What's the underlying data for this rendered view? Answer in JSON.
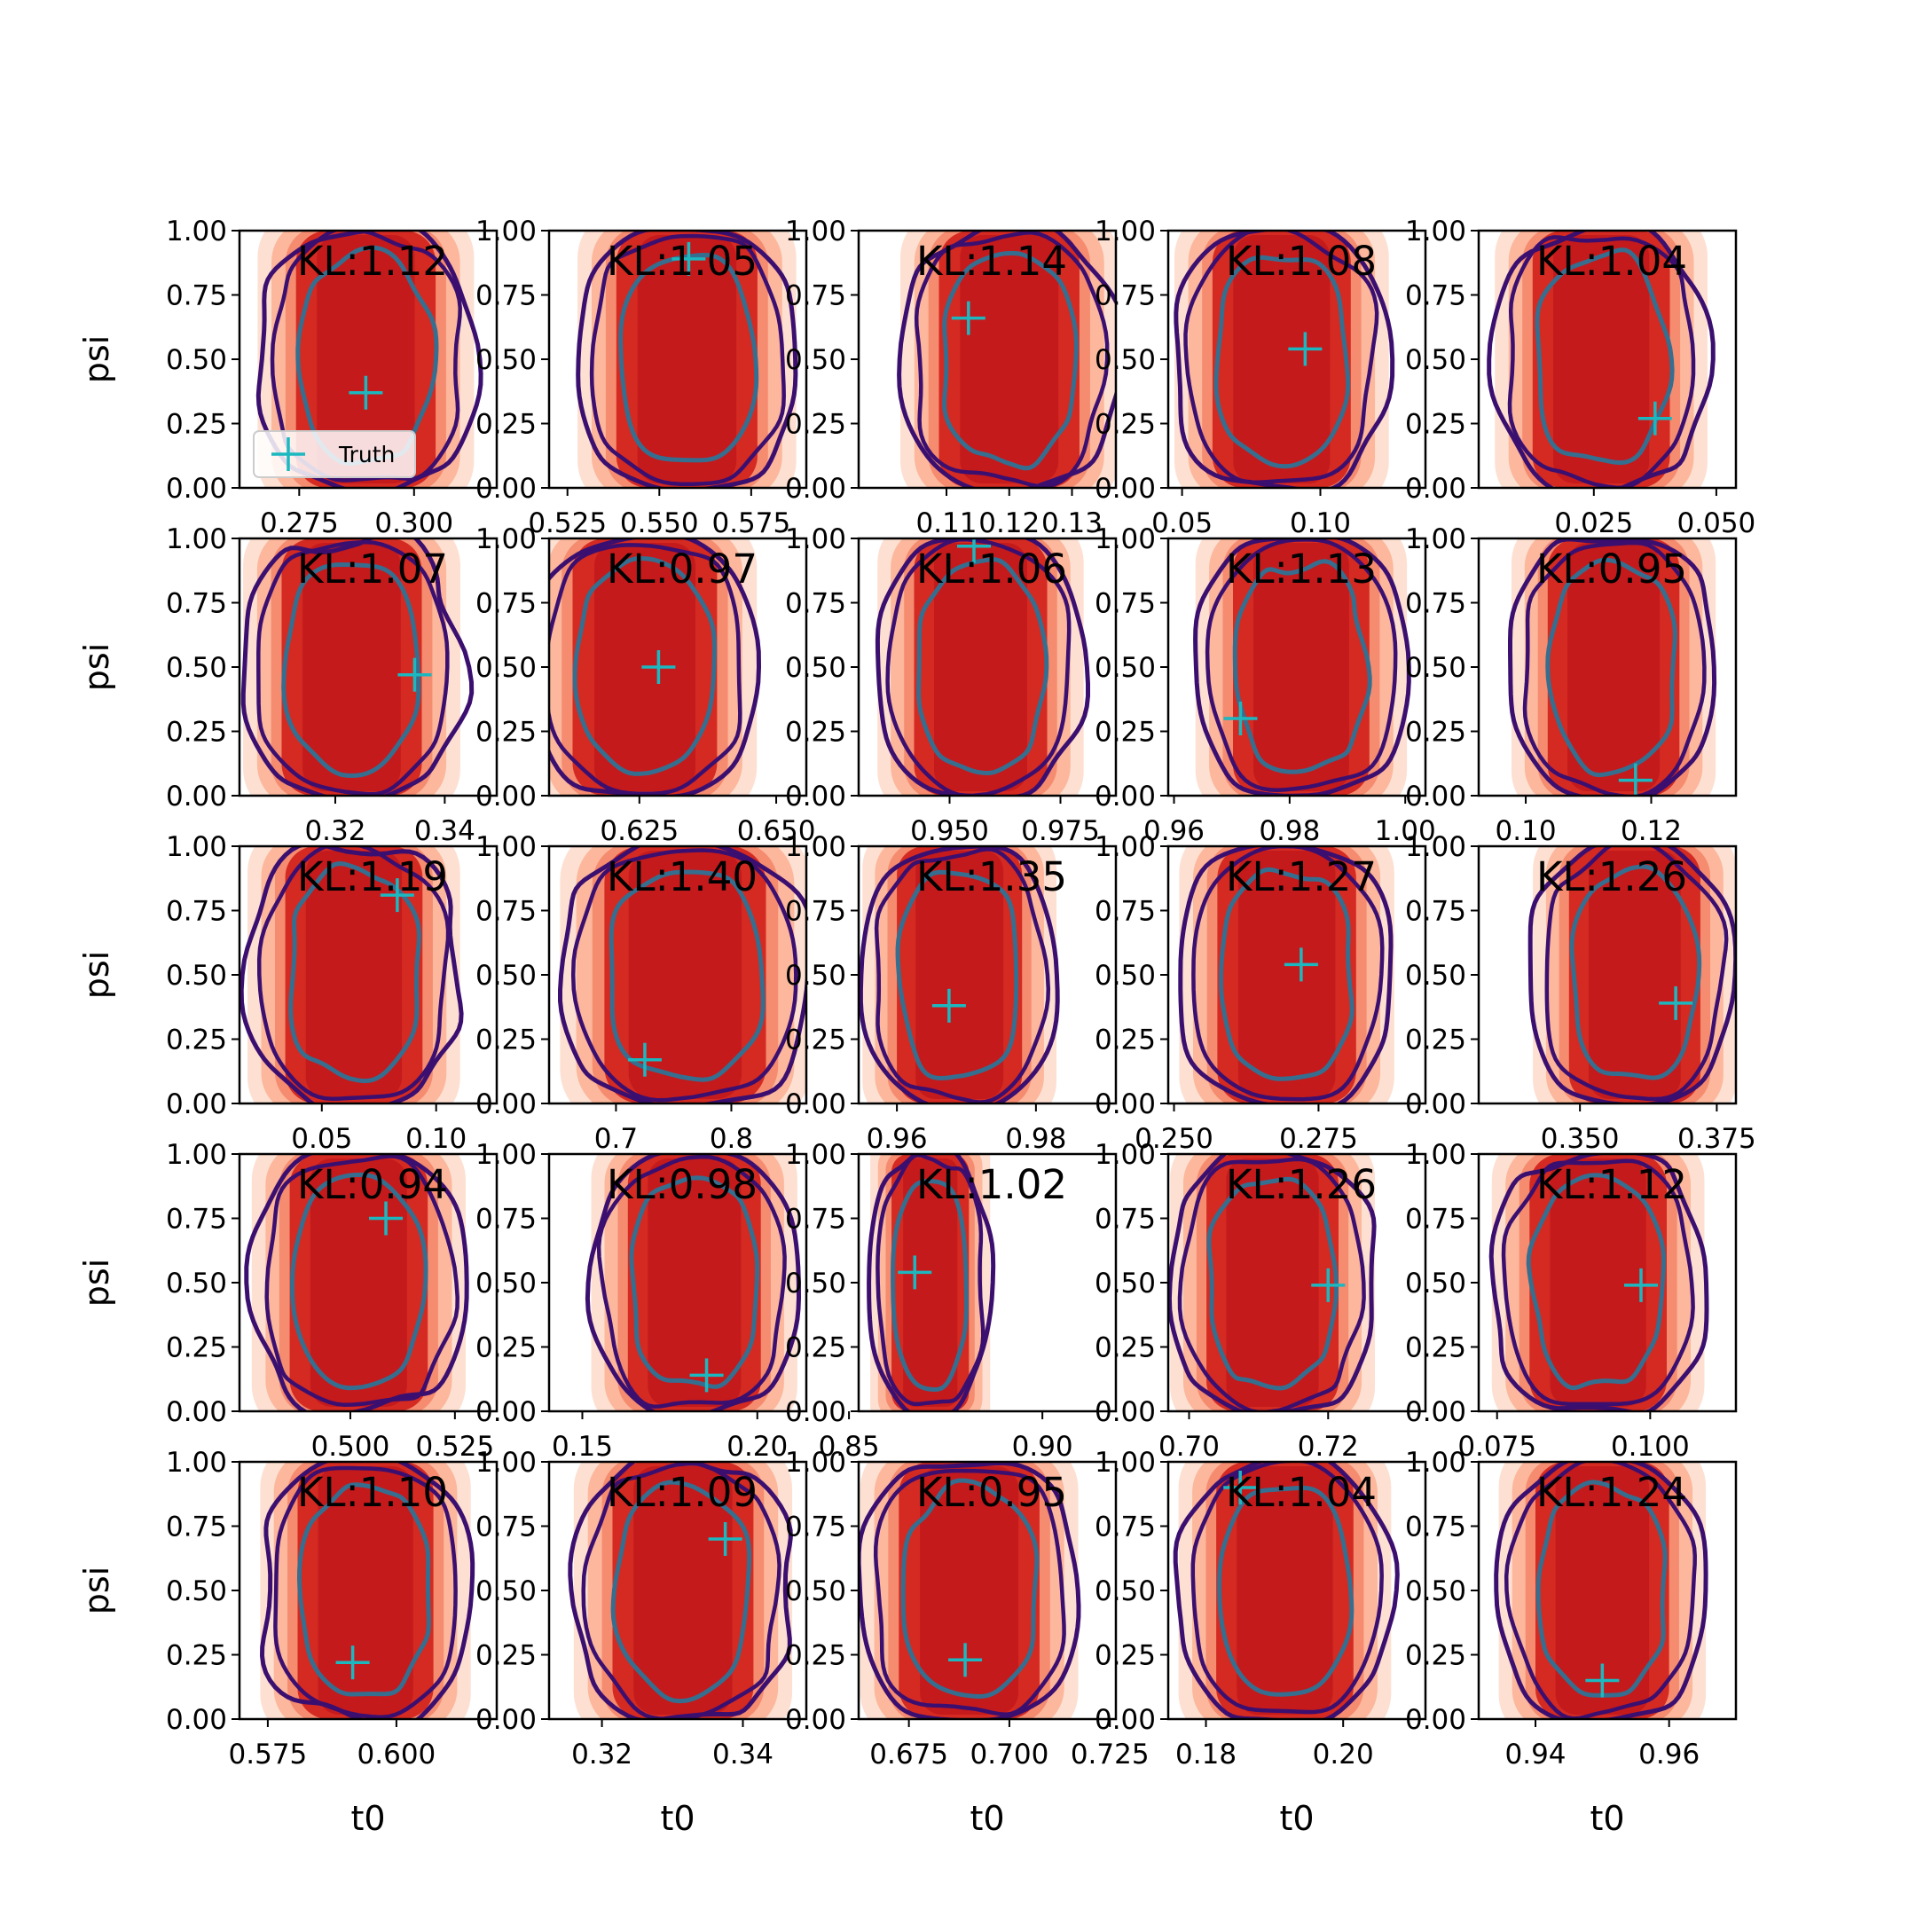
{
  "colors": {
    "fill_light": "#fde0d2",
    "fill_mid": "#fcb79c",
    "fill_mid2": "#f58b6f",
    "fill_dark": "#d42a22",
    "fill_darkest": "#c41a1c",
    "contour_outer": "#3b0f6f",
    "contour_inner": "#366e8f",
    "truth": "#1cb8c0"
  },
  "chart_data": {
    "type": "scatter",
    "description_type": "grid of 2D KDE contour plots with truth markers",
    "rows": 5,
    "cols": 5,
    "xlabel": "t0",
    "ylabel": "psi",
    "ylim": [
      0,
      1
    ],
    "yticks": [
      "0.00",
      "0.25",
      "0.50",
      "0.75",
      "1.00"
    ],
    "legend": {
      "label": "Truth",
      "placement": "lower-left",
      "panel": 0
    },
    "panels": [
      {
        "kl": "KL:1.12",
        "xlim": [
          0.262,
          0.318
        ],
        "xticks": [
          {
            "v": 0.275,
            "t": "0.275"
          },
          {
            "v": 0.3,
            "t": "0.300"
          }
        ],
        "truth": [
          0.2895,
          0.37
        ],
        "cx": 0.2895,
        "wid": 0.0152,
        "shift": 0
      },
      {
        "kl": "KL:1.05",
        "xlim": [
          0.52,
          0.59
        ],
        "xticks": [
          {
            "v": 0.525,
            "t": "0.525"
          },
          {
            "v": 0.55,
            "t": "0.550"
          },
          {
            "v": 0.575,
            "t": "0.575"
          }
        ],
        "truth": [
          0.558,
          0.89
        ],
        "cx": 0.5575,
        "wid": 0.0192,
        "shift": 0
      },
      {
        "kl": "KL:1.14",
        "xlim": [
          0.096,
          0.137
        ],
        "xticks": [
          {
            "v": 0.11,
            "t": "0.11"
          },
          {
            "v": 0.12,
            "t": "0.12"
          },
          {
            "v": 0.13,
            "t": "0.13"
          }
        ],
        "truth": [
          0.1135,
          0.66
        ],
        "cx": 0.12,
        "wid": 0.0112,
        "shift": 0
      },
      {
        "kl": "KL:1.08",
        "xlim": [
          0.045,
          0.138
        ],
        "xticks": [
          {
            "v": 0.05,
            "t": "0.05"
          },
          {
            "v": 0.1,
            "t": "0.10"
          }
        ],
        "truth": [
          0.0945,
          0.54
        ],
        "cx": 0.086,
        "wid": 0.025,
        "shift": 0
      },
      {
        "kl": "KL:1.04",
        "xlim": [
          0.0015,
          0.054
        ],
        "xticks": [
          {
            "v": 0.025,
            "t": "0.025"
          },
          {
            "v": 0.05,
            "t": "0.050"
          }
        ],
        "truth": [
          0.0375,
          0.27
        ],
        "cx": 0.0265,
        "wid": 0.014,
        "shift": 0
      },
      {
        "kl": "KL:1.07",
        "xlim": [
          0.3025,
          0.3495
        ],
        "xticks": [
          {
            "v": 0.32,
            "t": "0.32"
          },
          {
            "v": 0.34,
            "t": "0.34"
          }
        ],
        "truth": [
          0.3345,
          0.47
        ],
        "cx": 0.323,
        "wid": 0.0128,
        "shift": 0
      },
      {
        "kl": "KL:0.97",
        "xlim": [
          0.6085,
          0.6555
        ],
        "xticks": [
          {
            "v": 0.625,
            "t": "0.625"
          },
          {
            "v": 0.65,
            "t": "0.650"
          }
        ],
        "truth": [
          0.6285,
          0.5
        ],
        "cx": 0.626,
        "wid": 0.0132,
        "shift": 0
      },
      {
        "kl": "KL:1.06",
        "xlim": [
          0.9295,
          0.9875
        ],
        "xticks": [
          {
            "v": 0.95,
            "t": "0.950"
          },
          {
            "v": 0.975,
            "t": "0.975"
          }
        ],
        "truth": [
          0.9555,
          0.97
        ],
        "cx": 0.957,
        "wid": 0.015,
        "shift": 0
      },
      {
        "kl": "KL:1.13",
        "xlim": [
          0.959,
          1.0035
        ],
        "xticks": [
          {
            "v": 0.96,
            "t": "0.96"
          },
          {
            "v": 0.98,
            "t": "0.98"
          },
          {
            "v": 1.0,
            "t": "1.00"
          }
        ],
        "truth": [
          0.9715,
          0.3
        ],
        "cx": 0.982,
        "wid": 0.0118,
        "shift": 0
      },
      {
        "kl": "KL:0.95",
        "xlim": [
          0.0925,
          0.1335
        ],
        "xticks": [
          {
            "v": 0.1,
            "t": "0.10"
          },
          {
            "v": 0.12,
            "t": "0.12"
          }
        ],
        "truth": [
          0.1175,
          0.06
        ],
        "cx": 0.114,
        "wid": 0.0105,
        "shift": 0
      },
      {
        "kl": "KL:1.19",
        "xlim": [
          0.014,
          0.1265
        ],
        "xticks": [
          {
            "v": 0.05,
            "t": "0.05"
          },
          {
            "v": 0.1,
            "t": "0.10"
          }
        ],
        "truth": [
          0.083,
          0.81
        ],
        "cx": 0.064,
        "wid": 0.03,
        "shift": 0
      },
      {
        "kl": "KL:1.40",
        "xlim": [
          0.642,
          0.865
        ],
        "xticks": [
          {
            "v": 0.7,
            "t": "0.7"
          },
          {
            "v": 0.8,
            "t": "0.8"
          }
        ],
        "truth": [
          0.725,
          0.17
        ],
        "cx": 0.76,
        "wid": 0.07,
        "shift": 0
      },
      {
        "kl": "KL:1.35",
        "xlim": [
          0.9545,
          0.9915
        ],
        "xticks": [
          {
            "v": 0.96,
            "t": "0.96"
          },
          {
            "v": 0.98,
            "t": "0.98"
          }
        ],
        "truth": [
          0.9675,
          0.38
        ],
        "cx": 0.969,
        "wid": 0.009,
        "shift": 0
      },
      {
        "kl": "KL:1.27",
        "xlim": [
          0.249,
          0.2935
        ],
        "xticks": [
          {
            "v": 0.25,
            "t": "0.250"
          },
          {
            "v": 0.275,
            "t": "0.275"
          }
        ],
        "truth": [
          0.272,
          0.54
        ],
        "cx": 0.2695,
        "wid": 0.012,
        "shift": 0
      },
      {
        "kl": "KL:1.26",
        "xlim": [
          0.3315,
          0.3785
        ],
        "xticks": [
          {
            "v": 0.35,
            "t": "0.350"
          },
          {
            "v": 0.375,
            "t": "0.375"
          }
        ],
        "truth": [
          0.3675,
          0.39
        ],
        "cx": 0.36,
        "wid": 0.012,
        "shift": -0.3
      },
      {
        "kl": "KL:0.94",
        "xlim": [
          0.4735,
          0.535
        ],
        "xticks": [
          {
            "v": 0.5,
            "t": "0.500"
          },
          {
            "v": 0.525,
            "t": "0.525"
          }
        ],
        "truth": [
          0.5085,
          0.75
        ],
        "cx": 0.502,
        "wid": 0.0165,
        "shift": 0
      },
      {
        "kl": "KL:0.98",
        "xlim": [
          0.1405,
          0.214
        ],
        "xticks": [
          {
            "v": 0.15,
            "t": "0.15"
          },
          {
            "v": 0.2,
            "t": "0.20"
          }
        ],
        "truth": [
          0.1855,
          0.14
        ],
        "cx": 0.182,
        "wid": 0.019,
        "shift": 0
      },
      {
        "kl": "KL:1.02",
        "xlim": [
          0.8525,
          0.919
        ],
        "xticks": [
          {
            "v": 0.85,
            "t": "0.85"
          },
          {
            "v": 0.9,
            "t": "0.90"
          }
        ],
        "truth": [
          0.867,
          0.54
        ],
        "cx": 0.871,
        "wid": 0.01,
        "shift": 0
      },
      {
        "kl": "KL:1.26",
        "xlim": [
          0.697,
          0.734
        ],
        "xticks": [
          {
            "v": 0.7,
            "t": "0.70"
          },
          {
            "v": 0.72,
            "t": "0.72"
          }
        ],
        "truth": [
          0.72,
          0.49
        ],
        "cx": 0.712,
        "wid": 0.0095,
        "shift": 0
      },
      {
        "kl": "KL:1.12",
        "xlim": [
          0.072,
          0.114
        ],
        "xticks": [
          {
            "v": 0.075,
            "t": "0.075"
          },
          {
            "v": 0.1,
            "t": "0.100"
          }
        ],
        "truth": [
          0.0985,
          0.49
        ],
        "cx": 0.0915,
        "wid": 0.0112,
        "shift": 0
      },
      {
        "kl": "KL:1.10",
        "xlim": [
          0.5695,
          0.6195
        ],
        "xticks": [
          {
            "v": 0.575,
            "t": "0.575"
          },
          {
            "v": 0.6,
            "t": "0.600"
          }
        ],
        "truth": [
          0.5915,
          0.22
        ],
        "cx": 0.594,
        "wid": 0.0132,
        "shift": 0
      },
      {
        "kl": "KL:1.09",
        "xlim": [
          0.3125,
          0.349
        ],
        "xticks": [
          {
            "v": 0.32,
            "t": "0.32"
          },
          {
            "v": 0.34,
            "t": "0.34"
          }
        ],
        "truth": [
          0.3375,
          0.7
        ],
        "cx": 0.3315,
        "wid": 0.01,
        "shift": 0
      },
      {
        "kl": "KL:0.95",
        "xlim": [
          0.6625,
          0.7265
        ],
        "xticks": [
          {
            "v": 0.675,
            "t": "0.675"
          },
          {
            "v": 0.7,
            "t": "0.700"
          },
          {
            "v": 0.725,
            "t": "0.725"
          }
        ],
        "truth": [
          0.689,
          0.23
        ],
        "cx": 0.69,
        "wid": 0.0175,
        "shift": 0
      },
      {
        "kl": "KL:1.04",
        "xlim": [
          0.1745,
          0.212
        ],
        "xticks": [
          {
            "v": 0.18,
            "t": "0.18"
          },
          {
            "v": 0.2,
            "t": "0.20"
          }
        ],
        "truth": [
          0.185,
          0.9
        ],
        "cx": 0.1915,
        "wid": 0.01,
        "shift": 0
      },
      {
        "kl": "KL:1.24",
        "xlim": [
          0.9315,
          0.97
        ],
        "xticks": [
          {
            "v": 0.94,
            "t": "0.94"
          },
          {
            "v": 0.96,
            "t": "0.96"
          }
        ],
        "truth": [
          0.95,
          0.15
        ],
        "cx": 0.95,
        "wid": 0.01,
        "shift": 0
      }
    ]
  }
}
